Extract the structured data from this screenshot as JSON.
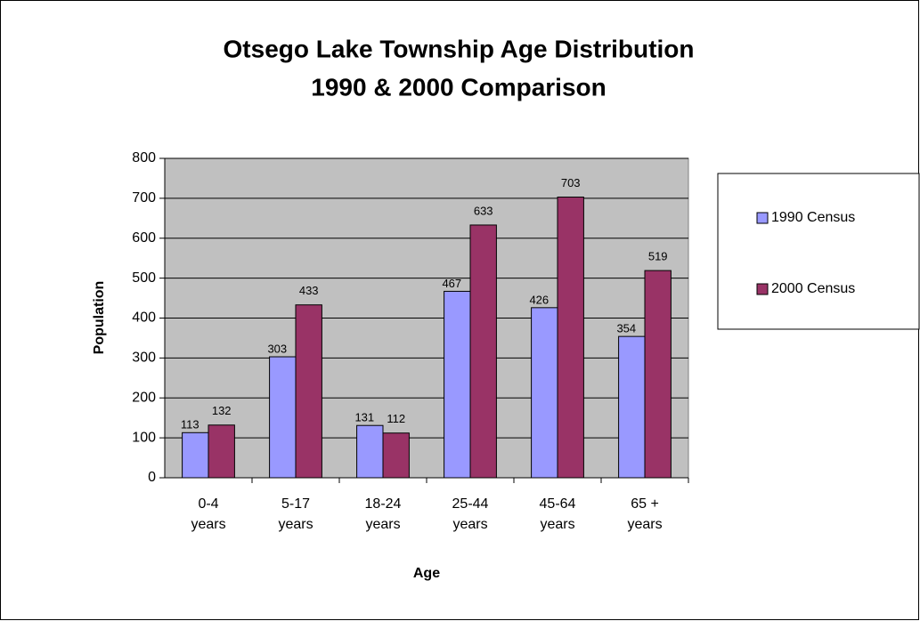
{
  "chart_data": {
    "type": "bar",
    "title": [
      "Otsego Lake Township Age Distribution",
      "1990 & 2000 Comparison"
    ],
    "x_label": "Age",
    "y_label": "Population",
    "categories": [
      "0-4 years",
      "5-17 years",
      "18-24 years",
      "25-44 years",
      "45-64 years",
      "65 + years"
    ],
    "series": [
      {
        "name": "1990 Census",
        "color": "#9999ff",
        "values": [
          113,
          303,
          131,
          467,
          426,
          354
        ]
      },
      {
        "name": "2000 Census",
        "color": "#993366",
        "values": [
          132,
          433,
          112,
          633,
          703,
          519
        ]
      }
    ],
    "ylim": [
      0,
      800
    ],
    "yticks": [
      0,
      100,
      200,
      300,
      400,
      500,
      600,
      700,
      800
    ],
    "grid": true,
    "legend": "right"
  }
}
